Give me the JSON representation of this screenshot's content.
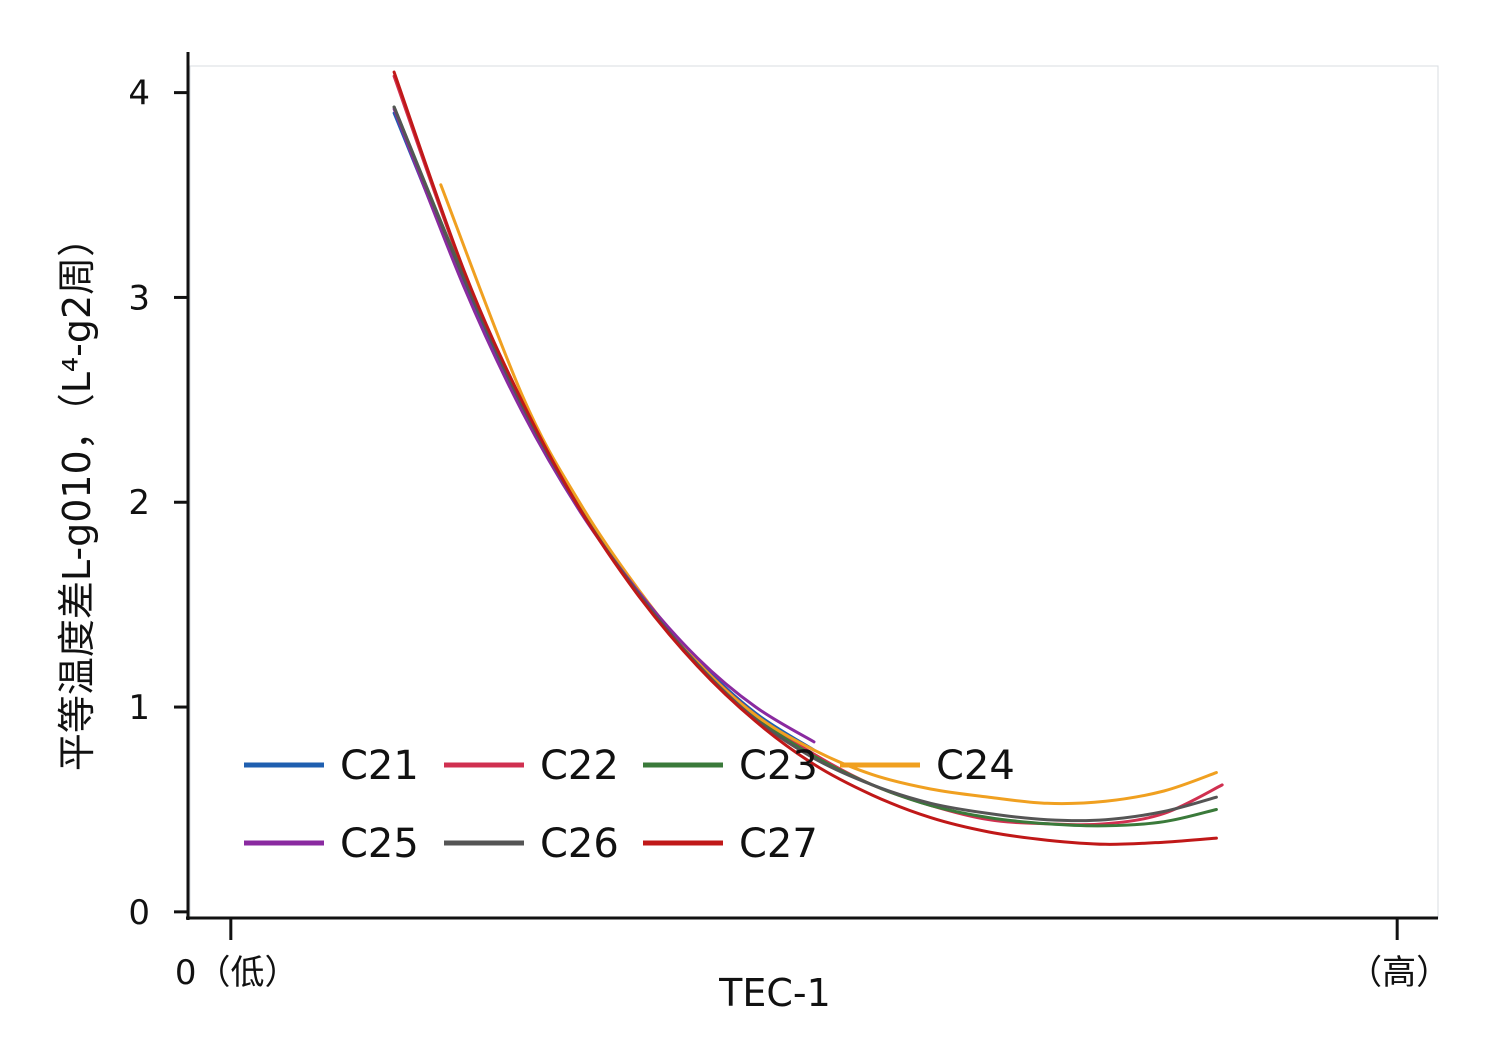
{
  "chart_data": {
    "type": "line",
    "xlabel": "TEC-1",
    "ylabel": "平等温度差L-g010，（L⁴-g2周）",
    "x_tick_labels": [
      {
        "label": "0（低）",
        "x": 0
      },
      {
        "label": "（高）",
        "x": 1
      }
    ],
    "y_ticks": [
      0,
      1,
      2,
      3,
      4
    ],
    "xlim": [
      -0.035,
      1.035
    ],
    "ylim": [
      -0.03,
      4.13
    ],
    "grid": false,
    "legend_position": "bottom-left",
    "series": [
      {
        "name": "C21",
        "color": "#1f5fb0",
        "x": [
          0.14,
          0.2,
          0.25,
          0.3,
          0.35,
          0.4,
          0.45,
          0.5
        ],
        "y": [
          3.9,
          3.07,
          2.46,
          1.96,
          1.56,
          1.23,
          0.97,
          0.79
        ]
      },
      {
        "name": "C22",
        "color": "#d03050",
        "x": [
          0.14,
          0.2,
          0.25,
          0.3,
          0.35,
          0.4,
          0.45,
          0.5,
          0.55,
          0.6,
          0.65,
          0.7,
          0.75,
          0.8,
          0.85
        ],
        "y": [
          4.08,
          3.12,
          2.48,
          1.96,
          1.55,
          1.22,
          0.96,
          0.77,
          0.62,
          0.52,
          0.45,
          0.43,
          0.43,
          0.48,
          0.62
        ]
      },
      {
        "name": "C23",
        "color": "#3a7a3a",
        "x": [
          0.14,
          0.2,
          0.25,
          0.3,
          0.35,
          0.4,
          0.45,
          0.5,
          0.55,
          0.6,
          0.65,
          0.7,
          0.75,
          0.8,
          0.845
        ],
        "y": [
          3.93,
          3.1,
          2.48,
          1.97,
          1.56,
          1.22,
          0.95,
          0.76,
          0.62,
          0.52,
          0.46,
          0.43,
          0.42,
          0.44,
          0.5
        ]
      },
      {
        "name": "C24",
        "color": "#f0a020",
        "x": [
          0.18,
          0.25,
          0.3,
          0.35,
          0.4,
          0.45,
          0.5,
          0.55,
          0.6,
          0.65,
          0.7,
          0.75,
          0.8,
          0.845
        ],
        "y": [
          3.55,
          2.52,
          1.99,
          1.57,
          1.22,
          0.96,
          0.79,
          0.67,
          0.6,
          0.56,
          0.53,
          0.54,
          0.59,
          0.68
        ]
      },
      {
        "name": "C25",
        "color": "#8a2aa0",
        "x": [
          0.14,
          0.2,
          0.25,
          0.3,
          0.35,
          0.4,
          0.45,
          0.5
        ],
        "y": [
          3.92,
          3.05,
          2.44,
          1.95,
          1.56,
          1.24,
          1.0,
          0.83
        ]
      },
      {
        "name": "C26",
        "color": "#555555",
        "x": [
          0.14,
          0.2,
          0.25,
          0.3,
          0.35,
          0.4,
          0.45,
          0.5,
          0.55,
          0.6,
          0.65,
          0.7,
          0.75,
          0.8,
          0.845
        ],
        "y": [
          3.93,
          3.09,
          2.47,
          1.96,
          1.55,
          1.21,
          0.94,
          0.75,
          0.62,
          0.53,
          0.48,
          0.45,
          0.45,
          0.49,
          0.56
        ]
      },
      {
        "name": "C27",
        "color": "#c01818",
        "x": [
          0.14,
          0.2,
          0.25,
          0.3,
          0.35,
          0.4,
          0.45,
          0.5,
          0.55,
          0.6,
          0.65,
          0.7,
          0.75,
          0.8,
          0.845
        ],
        "y": [
          4.1,
          3.13,
          2.49,
          1.96,
          1.54,
          1.2,
          0.93,
          0.72,
          0.57,
          0.46,
          0.39,
          0.35,
          0.33,
          0.34,
          0.36
        ]
      }
    ]
  }
}
